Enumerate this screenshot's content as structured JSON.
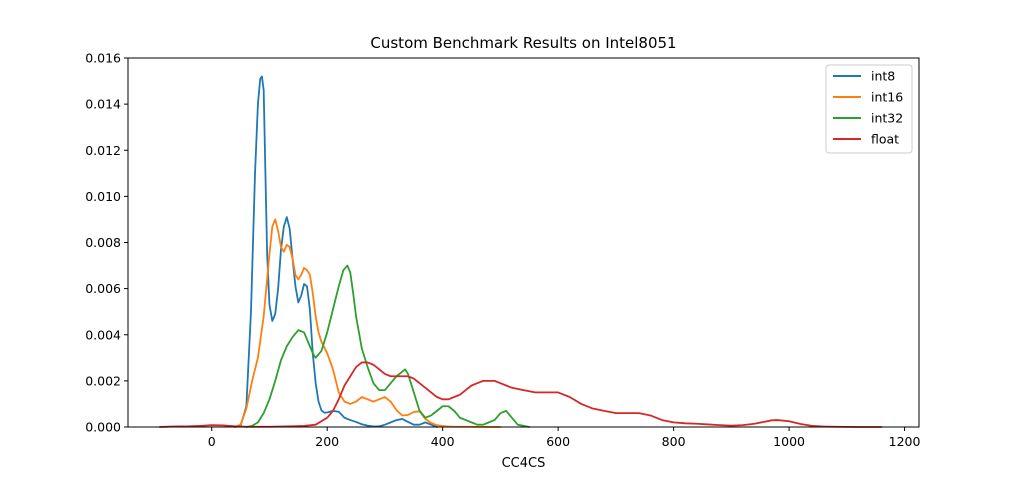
{
  "chart_data": {
    "type": "line",
    "title": "Custom Benchmark Results on Intel8051",
    "xlabel": "CC4CS",
    "ylabel": "",
    "xlim": [
      -145,
      1225
    ],
    "ylim": [
      0,
      0.016
    ],
    "xticks": [
      0,
      200,
      400,
      600,
      800,
      1000,
      1200
    ],
    "yticks": [
      0.0,
      0.002,
      0.004,
      0.006,
      0.008,
      0.01,
      0.012,
      0.014,
      0.016
    ],
    "xtick_labels": [
      "0",
      "200",
      "400",
      "600",
      "800",
      "1000",
      "1200"
    ],
    "ytick_labels": [
      "0.000",
      "0.002",
      "0.004",
      "0.006",
      "0.008",
      "0.010",
      "0.012",
      "0.014",
      "0.016"
    ],
    "grid": false,
    "legend_position": "top-right",
    "series": [
      {
        "name": "int8",
        "color": "#1f77b4",
        "x": [
          40,
          50,
          60,
          68,
          75,
          80,
          84,
          87,
          90,
          93,
          96,
          100,
          105,
          110,
          115,
          120,
          125,
          130,
          135,
          140,
          145,
          150,
          155,
          160,
          165,
          170,
          175,
          180,
          185,
          190,
          195,
          200,
          210,
          220,
          230,
          240,
          250,
          260,
          270,
          280,
          290,
          300,
          310,
          320,
          330,
          340,
          350,
          360,
          370,
          380,
          390
        ],
        "y": [
          0,
          5e-05,
          0.0009,
          0.005,
          0.011,
          0.014,
          0.0151,
          0.0152,
          0.0146,
          0.011,
          0.0075,
          0.0053,
          0.0046,
          0.0049,
          0.006,
          0.0077,
          0.0087,
          0.0091,
          0.0086,
          0.0073,
          0.0061,
          0.0054,
          0.0057,
          0.0062,
          0.0061,
          0.0051,
          0.0032,
          0.0019,
          0.0011,
          0.00072,
          0.00062,
          0.00063,
          0.0007,
          0.00066,
          0.0004,
          0.0003,
          0.00022,
          0.00012,
          6e-05,
          2e-05,
          3e-05,
          0.0001,
          0.0002,
          0.0003,
          0.00035,
          0.00022,
          0.0001,
          0.0001,
          0.0002,
          0.0001,
          0
        ]
      },
      {
        "name": "int16",
        "color": "#ff7f0e",
        "x": [
          40,
          50,
          60,
          70,
          80,
          90,
          100,
          105,
          110,
          115,
          120,
          125,
          130,
          135,
          140,
          145,
          150,
          155,
          160,
          165,
          170,
          175,
          180,
          185,
          190,
          200,
          210,
          220,
          230,
          240,
          250,
          260,
          270,
          280,
          290,
          300,
          310,
          320,
          330,
          340,
          350,
          360,
          370,
          380,
          390,
          400,
          410,
          420,
          440,
          470,
          500
        ],
        "y": [
          0,
          0.0001,
          0.0008,
          0.002,
          0.003,
          0.0048,
          0.0075,
          0.0087,
          0.009,
          0.0085,
          0.0078,
          0.0076,
          0.0079,
          0.0078,
          0.0073,
          0.0066,
          0.0064,
          0.0066,
          0.0069,
          0.0068,
          0.0066,
          0.0058,
          0.0048,
          0.0041,
          0.0037,
          0.0032,
          0.0025,
          0.0015,
          0.0011,
          0.001,
          0.0011,
          0.0013,
          0.0012,
          0.0011,
          0.0012,
          0.0013,
          0.0011,
          0.00073,
          0.0005,
          0.00052,
          0.00065,
          0.00068,
          0.00035,
          0.00018,
          8e-05,
          4e-05,
          2e-05,
          1e-05,
          1e-05,
          5e-06,
          0
        ]
      },
      {
        "name": "int32",
        "color": "#2ca02c",
        "x": [
          60,
          70,
          80,
          90,
          100,
          110,
          120,
          130,
          140,
          150,
          160,
          170,
          175,
          180,
          190,
          200,
          210,
          220,
          228,
          235,
          240,
          245,
          250,
          260,
          270,
          280,
          290,
          300,
          310,
          320,
          330,
          335,
          340,
          350,
          360,
          370,
          380,
          390,
          400,
          410,
          420,
          430,
          440,
          450,
          460,
          470,
          480,
          490,
          500,
          510,
          520,
          530,
          550
        ],
        "y": [
          0,
          5e-05,
          0.0002,
          0.0006,
          0.0012,
          0.002,
          0.0029,
          0.0035,
          0.0039,
          0.0042,
          0.0041,
          0.0035,
          0.0032,
          0.003,
          0.0033,
          0.0041,
          0.0051,
          0.0061,
          0.0068,
          0.007,
          0.0067,
          0.0058,
          0.0048,
          0.0034,
          0.0026,
          0.0019,
          0.0016,
          0.0016,
          0.0019,
          0.0022,
          0.0024,
          0.0025,
          0.0023,
          0.0015,
          0.0007,
          0.0004,
          0.0005,
          0.0007,
          0.0009,
          0.0009,
          0.0007,
          0.0004,
          0.0003,
          0.0002,
          0.0001,
          0.0001,
          0.0002,
          0.0003,
          0.0006,
          0.0007,
          0.0004,
          0.0001,
          0
        ]
      },
      {
        "name": "float",
        "color": "#d62728",
        "x": [
          -90,
          -70,
          -40,
          -20,
          0,
          20,
          40,
          60,
          80,
          100,
          120,
          140,
          160,
          180,
          200,
          210,
          220,
          230,
          240,
          250,
          260,
          270,
          280,
          290,
          300,
          310,
          320,
          330,
          340,
          350,
          360,
          370,
          380,
          390,
          400,
          410,
          420,
          430,
          440,
          450,
          460,
          470,
          480,
          490,
          500,
          510,
          520,
          540,
          560,
          580,
          600,
          620,
          640,
          660,
          680,
          700,
          720,
          740,
          760,
          780,
          800,
          820,
          840,
          860,
          880,
          900,
          920,
          940,
          960,
          970,
          980,
          1000,
          1020,
          1040,
          1060,
          1080,
          1100,
          1120,
          1140,
          1160
        ],
        "y": [
          0,
          2e-05,
          3e-05,
          5e-05,
          8e-05,
          7e-05,
          3e-05,
          1e-05,
          1e-05,
          1e-05,
          2e-05,
          3e-05,
          5e-05,
          0.0001,
          0.0004,
          0.0007,
          0.0012,
          0.0018,
          0.0022,
          0.0026,
          0.0028,
          0.0028,
          0.0027,
          0.0025,
          0.0023,
          0.0022,
          0.0022,
          0.0022,
          0.0022,
          0.0021,
          0.0019,
          0.0017,
          0.0015,
          0.0013,
          0.0012,
          0.0012,
          0.0013,
          0.0014,
          0.0016,
          0.0018,
          0.0019,
          0.002,
          0.002,
          0.002,
          0.0019,
          0.0018,
          0.0017,
          0.0016,
          0.0015,
          0.0015,
          0.0015,
          0.0013,
          0.001,
          0.0008,
          0.0007,
          0.0006,
          0.0006,
          0.0006,
          0.0005,
          0.0003,
          0.0002,
          0.00016,
          0.00014,
          0.00011,
          8e-05,
          6e-05,
          8e-05,
          0.00014,
          0.00024,
          0.00029,
          0.0003,
          0.00025,
          0.00013,
          5e-05,
          2e-05,
          1e-05,
          5e-06,
          0,
          0,
          0
        ]
      }
    ]
  }
}
